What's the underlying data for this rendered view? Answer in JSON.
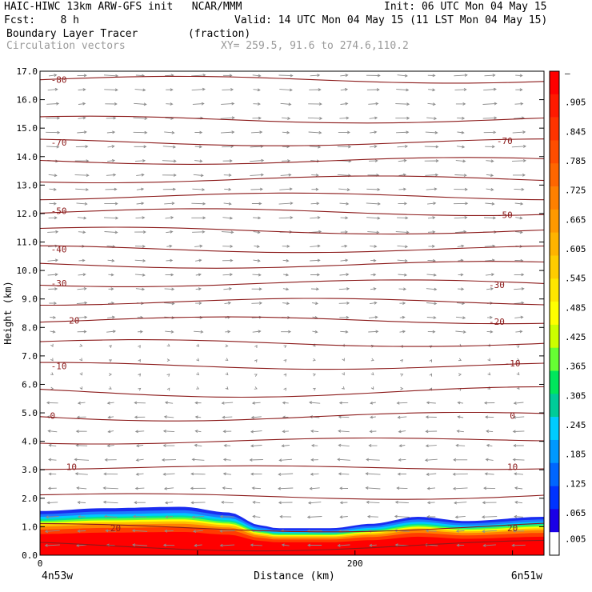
{
  "header": {
    "title_left": "HAIC-HIWC 13km ARW-GFS init   NCAR/MMM",
    "init": "Init: 06 UTC Mon 04 May 15",
    "fcst": "Fcst:    8 h",
    "valid": "Valid: 14 UTC Mon 04 May 15 (11 LST Mon 04 May 15)",
    "field": "Boundary Layer Tracer        (fraction)",
    "vectors": "Circulation vectors",
    "xy": "XY= 259.5, 91.6 to 274.6,110.2"
  },
  "chart_data": {
    "type": "heatmap",
    "ylabel": "Height (km)",
    "xlabel": "Distance (km)",
    "x_left_label": "4n53w",
    "x_right_label": "6n51w",
    "ylim": [
      0,
      17
    ],
    "xlim": [
      0,
      320
    ],
    "y_ticks": [
      "0.0",
      "1.0",
      "2.0",
      "3.0",
      "4.0",
      "5.0",
      "6.0",
      "7.0",
      "8.0",
      "9.0",
      "10.0",
      "11.0",
      "12.0",
      "13.0",
      "14.0",
      "15.0",
      "16.0",
      "17.0"
    ],
    "x_ticks": [
      {
        "value": 0,
        "label": "0"
      },
      {
        "value": 200,
        "label": "200"
      }
    ],
    "tracer_top_km": [
      {
        "x": 0,
        "y": 1.55
      },
      {
        "x": 40,
        "y": 1.65
      },
      {
        "x": 90,
        "y": 1.7
      },
      {
        "x": 120,
        "y": 1.5
      },
      {
        "x": 140,
        "y": 1.05
      },
      {
        "x": 150,
        "y": 0.95
      },
      {
        "x": 185,
        "y": 0.95
      },
      {
        "x": 210,
        "y": 1.1
      },
      {
        "x": 240,
        "y": 1.35
      },
      {
        "x": 270,
        "y": 1.2
      },
      {
        "x": 320,
        "y": 1.35
      }
    ],
    "colorbar_labels": [
      "–",
      ".905",
      ".845",
      ".785",
      ".725",
      ".665",
      ".605",
      ".545",
      ".485",
      ".425",
      ".365",
      ".305",
      ".245",
      ".185",
      ".125",
      ".065",
      ".005"
    ],
    "colorbar_colors": [
      "#ff0000",
      "#ff1a00",
      "#ff3300",
      "#ff4d00",
      "#ff6600",
      "#ff8000",
      "#ff9900",
      "#ffb300",
      "#ffcc00",
      "#ffe600",
      "#ffff00",
      "#ccff00",
      "#66ff33",
      "#00e65c",
      "#00cc99",
      "#00ccff",
      "#0099ff",
      "#0066ff",
      "#0033ff",
      "#1a00e6",
      "#ffffff"
    ],
    "isotherm_labels": [
      {
        "label": "-80",
        "x": 12,
        "y": 16.7
      },
      {
        "label": "-70",
        "x": 12,
        "y": 14.5
      },
      {
        "label": "-70",
        "x": 295,
        "y": 14.55
      },
      {
        "label": "-50",
        "x": 12,
        "y": 12.1
      },
      {
        "label": "-50",
        "x": 295,
        "y": 11.95
      },
      {
        "label": "-40",
        "x": 12,
        "y": 10.75
      },
      {
        "label": "-30",
        "x": 12,
        "y": 9.55
      },
      {
        "label": "-30",
        "x": 290,
        "y": 9.5
      },
      {
        "label": "-20",
        "x": 20,
        "y": 8.25
      },
      {
        "label": "-20",
        "x": 290,
        "y": 8.2
      },
      {
        "label": "-10",
        "x": 12,
        "y": 6.65
      },
      {
        "label": "-10",
        "x": 300,
        "y": 6.75
      },
      {
        "label": "0",
        "x": 8,
        "y": 4.9
      },
      {
        "label": "0",
        "x": 300,
        "y": 4.9
      },
      {
        "label": "10",
        "x": 20,
        "y": 3.1
      },
      {
        "label": "10",
        "x": 300,
        "y": 3.1
      },
      {
        "label": "20",
        "x": 300,
        "y": 0.95
      },
      {
        "label": "20",
        "x": 48,
        "y": 0.95
      }
    ],
    "isotherms_km": [
      16.7,
      15.3,
      14.5,
      13.85,
      13.2,
      12.6,
      12.05,
      11.4,
      10.75,
      10.2,
      9.55,
      8.9,
      8.25,
      7.45,
      6.65,
      5.75,
      4.9,
      4.05,
      3.1,
      2.1,
      1.0,
      0.35
    ]
  }
}
